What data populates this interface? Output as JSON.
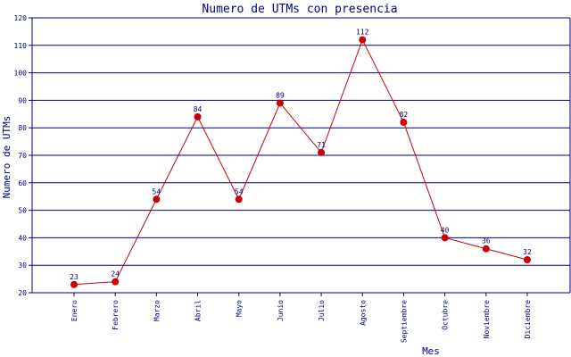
{
  "chart_data": {
    "type": "line",
    "title": "Numero de UTMs con presencia",
    "xlabel": "Mes",
    "ylabel": "Numero de UTMs",
    "categories": [
      "Enero",
      "Febrero",
      "Marzo",
      "Abril",
      "Mayo",
      "Junio",
      "Julio",
      "Agosto",
      "Septiembre",
      "Octubre",
      "Noviembre",
      "Diciembre"
    ],
    "values": [
      23,
      24,
      54,
      84,
      54,
      89,
      71,
      112,
      82,
      40,
      36,
      32
    ],
    "data_labels": [
      "23",
      "24",
      "54",
      "84",
      "54",
      "89",
      "71",
      "112",
      "82",
      "40",
      "36",
      "32"
    ],
    "ylim": [
      20,
      120
    ],
    "yticks": [
      20,
      30,
      40,
      50,
      60,
      70,
      80,
      90,
      100,
      110,
      120
    ],
    "grid": "horizontal",
    "colors": {
      "line": "#cc0000",
      "marker": "#cc0000",
      "axis": "#000080",
      "grid": "#000080",
      "text": "#000080",
      "background": "#ffffff"
    }
  }
}
